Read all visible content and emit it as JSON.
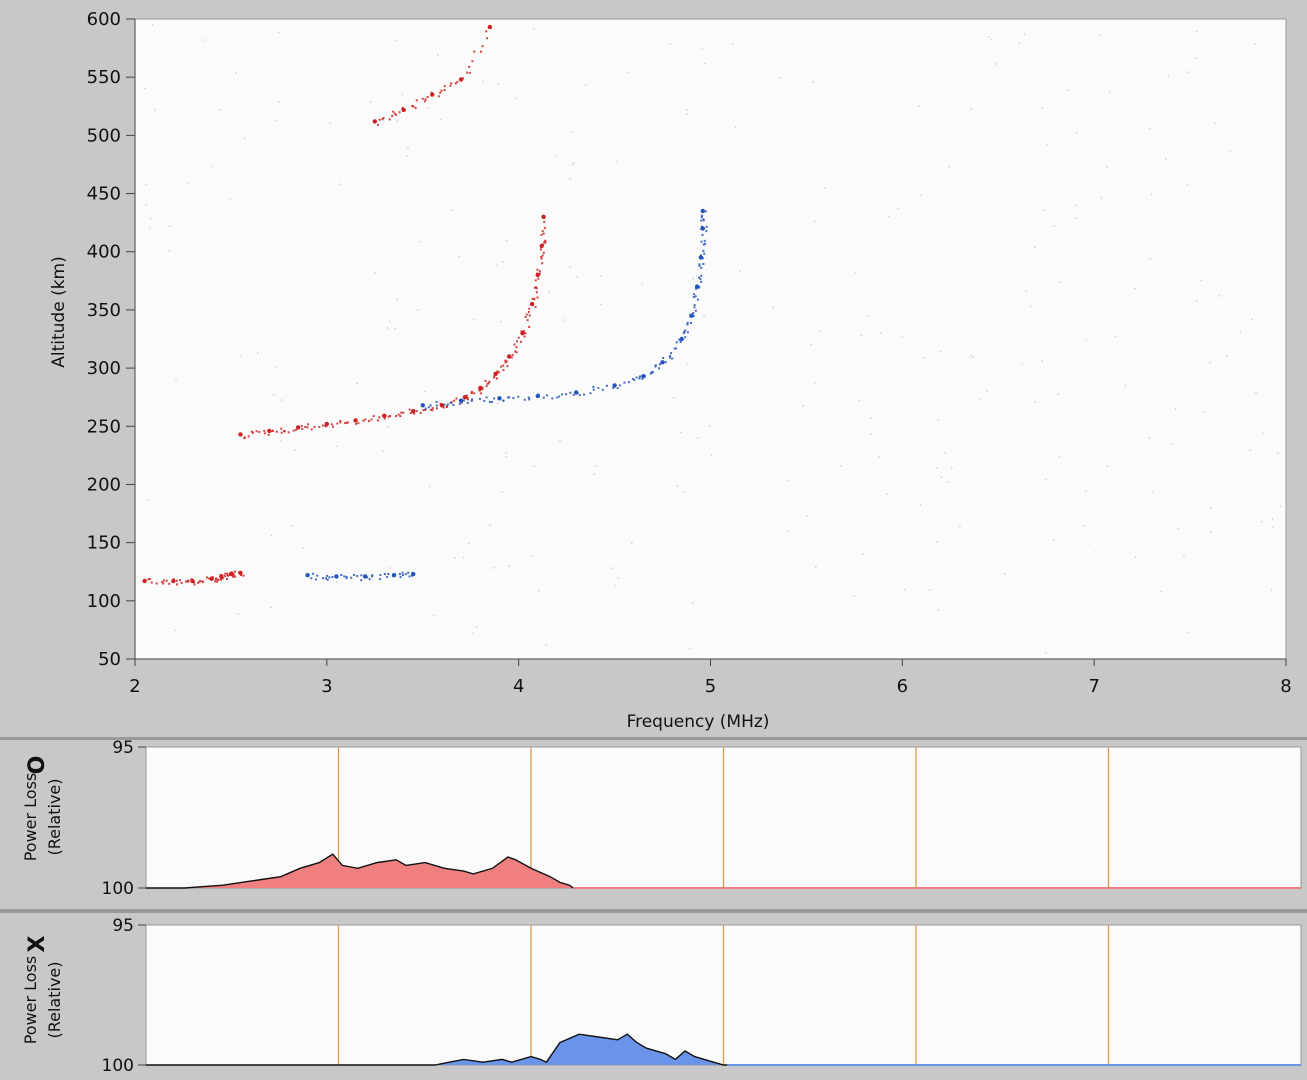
{
  "chart_data": [
    {
      "type": "scatter",
      "xlabel": "Frequency (MHz)",
      "ylabel": "Altitude (km)",
      "xlim": [
        2,
        8
      ],
      "ylim": [
        50,
        600
      ],
      "x_ticks": [
        "2",
        "3",
        "4",
        "5",
        "6",
        "7",
        "8"
      ],
      "y_ticks": [
        "50",
        "100",
        "150",
        "200",
        "250",
        "300",
        "350",
        "400",
        "450",
        "500",
        "550",
        "600"
      ],
      "grid": false,
      "series": [
        {
          "color": "#cc2222",
          "points": [
            [
              2.05,
              117
            ],
            [
              2.2,
              117
            ],
            [
              2.3,
              117
            ],
            [
              2.4,
              119
            ],
            [
              2.45,
              121
            ],
            [
              2.5,
              123
            ],
            [
              2.55,
              124
            ],
            [
              2.55,
              243
            ],
            [
              2.7,
              246
            ],
            [
              2.85,
              249
            ],
            [
              3.0,
              252
            ],
            [
              3.15,
              255
            ],
            [
              3.3,
              259
            ],
            [
              3.45,
              263
            ],
            [
              3.6,
              268
            ],
            [
              3.72,
              275
            ],
            [
              3.8,
              283
            ],
            [
              3.88,
              295
            ],
            [
              3.95,
              310
            ],
            [
              4.02,
              330
            ],
            [
              4.07,
              355
            ],
            [
              4.1,
              380
            ],
            [
              4.12,
              405
            ],
            [
              4.13,
              430
            ],
            [
              3.25,
              512
            ],
            [
              3.4,
              522
            ],
            [
              3.55,
              535
            ],
            [
              3.7,
              548
            ],
            [
              3.85,
              593
            ]
          ]
        },
        {
          "color": "#2255bb",
          "points": [
            [
              2.9,
              122
            ],
            [
              3.05,
              121
            ],
            [
              3.2,
              121
            ],
            [
              3.35,
              122
            ],
            [
              3.45,
              123
            ],
            [
              3.5,
              268
            ],
            [
              3.7,
              272
            ],
            [
              3.9,
              274
            ],
            [
              4.1,
              276
            ],
            [
              4.3,
              279
            ],
            [
              4.5,
              285
            ],
            [
              4.65,
              293
            ],
            [
              4.75,
              305
            ],
            [
              4.85,
              325
            ],
            [
              4.9,
              345
            ],
            [
              4.93,
              370
            ],
            [
              4.95,
              395
            ],
            [
              4.96,
              420
            ],
            [
              4.96,
              435
            ]
          ]
        }
      ]
    },
    {
      "type": "area",
      "ylabel": "Power Loss (Relative)",
      "mode_label": "O",
      "y_ticks": [
        "95",
        "100"
      ],
      "xlim": [
        2,
        8
      ],
      "ylim": [
        100,
        95
      ],
      "color": "#f08080",
      "x": [
        2.0,
        2.2,
        2.4,
        2.6,
        2.7,
        2.8,
        2.9,
        2.97,
        3.02,
        3.1,
        3.2,
        3.3,
        3.35,
        3.45,
        3.55,
        3.65,
        3.7,
        3.8,
        3.88,
        3.92,
        4.0,
        4.1,
        4.15,
        4.2,
        4.22
      ],
      "values": [
        100,
        100,
        99.9,
        99.7,
        99.6,
        99.3,
        99.1,
        98.8,
        99.2,
        99.3,
        99.1,
        99.0,
        99.2,
        99.1,
        99.3,
        99.4,
        99.5,
        99.3,
        98.9,
        99.0,
        99.3,
        99.6,
        99.8,
        99.9,
        100
      ]
    },
    {
      "type": "area",
      "ylabel": "Power Loss (Relative)",
      "mode_label": "X",
      "y_ticks": [
        "95",
        "100"
      ],
      "xlim": [
        2,
        8
      ],
      "ylim": [
        100,
        95
      ],
      "color": "#6a94ea",
      "x": [
        2.0,
        3.5,
        3.65,
        3.75,
        3.85,
        3.9,
        4.0,
        4.05,
        4.08,
        4.15,
        4.25,
        4.35,
        4.45,
        4.5,
        4.55,
        4.6,
        4.7,
        4.75,
        4.8,
        4.85,
        4.9,
        5.0,
        5.02
      ],
      "values": [
        100,
        100,
        99.8,
        99.9,
        99.8,
        99.9,
        99.7,
        99.8,
        99.9,
        99.2,
        98.9,
        99.0,
        99.1,
        98.9,
        99.2,
        99.4,
        99.6,
        99.8,
        99.5,
        99.7,
        99.8,
        100,
        100
      ]
    }
  ]
}
